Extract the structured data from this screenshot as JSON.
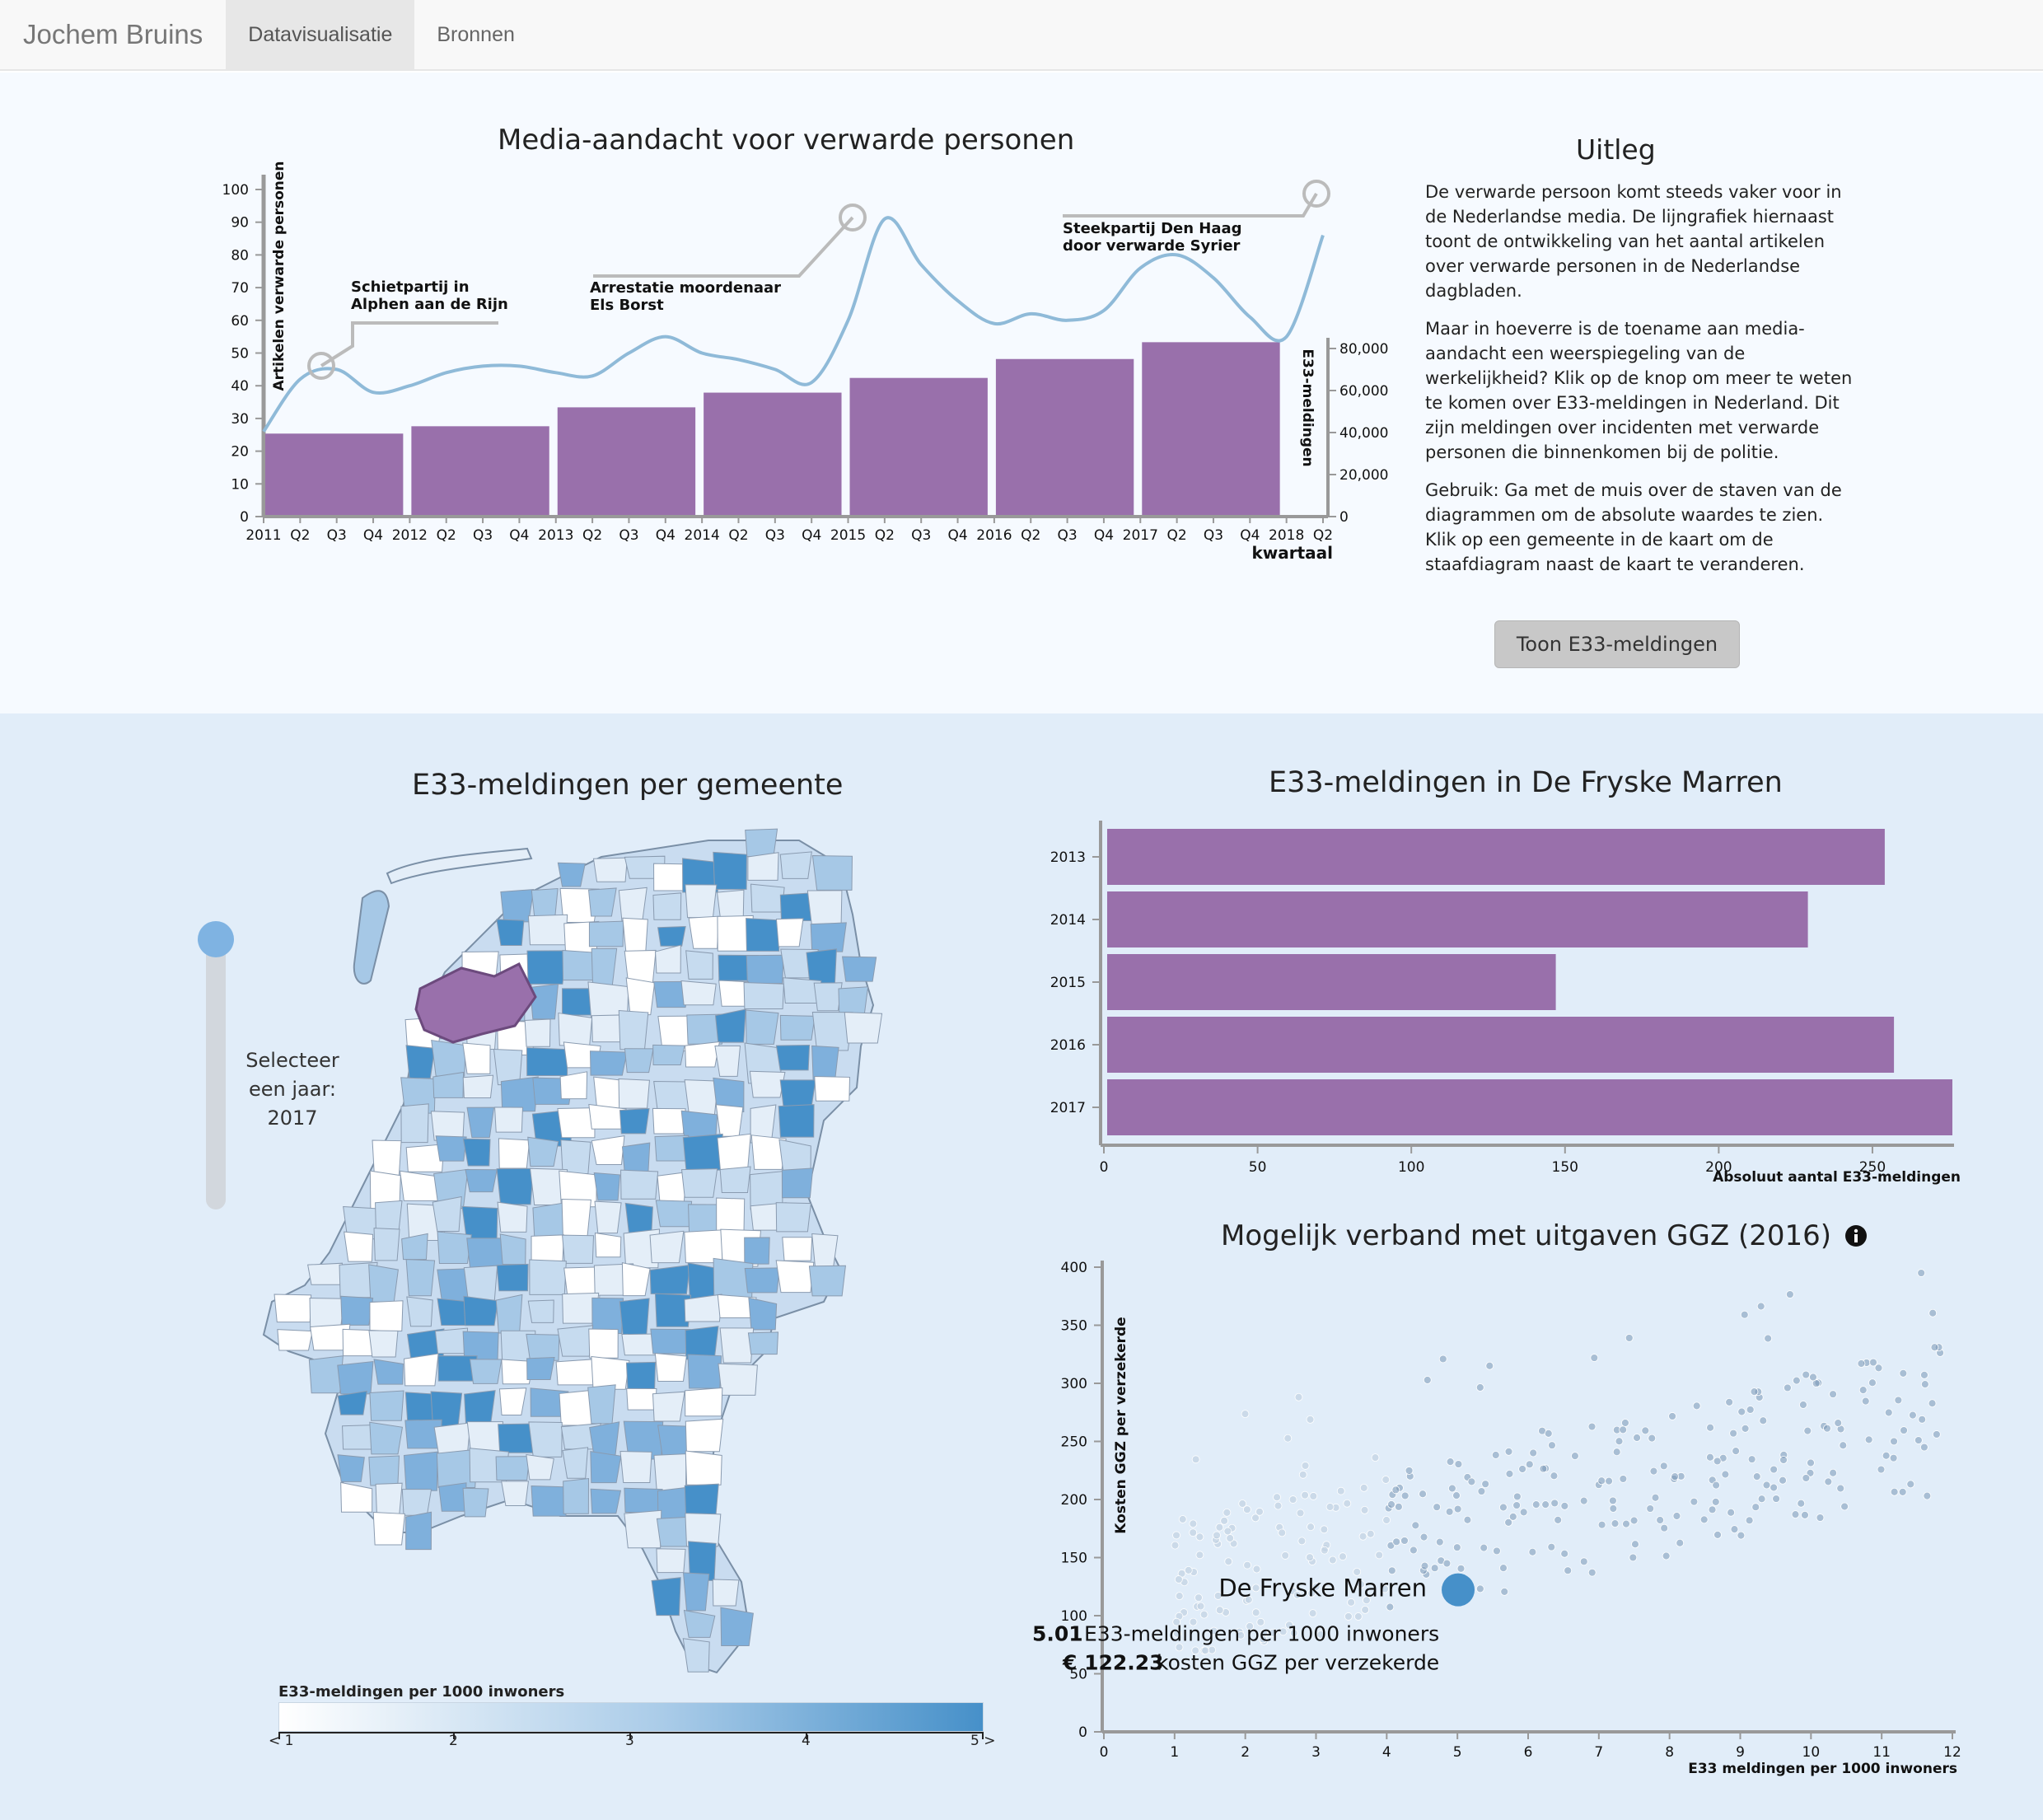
{
  "navbar": {
    "brand": "Jochem Bruins",
    "links": [
      {
        "label": "Datavisualisatie",
        "active": true
      },
      {
        "label": "Bronnen",
        "active": false
      }
    ]
  },
  "media_chart": {
    "title": "Media-aandacht voor verwarde personen",
    "ylabel_left": "Artikelen verwarde personen",
    "ylabel_right": "E33-meldingen",
    "xlabel": "kwartaal",
    "quarter_labels": [
      "2011",
      "Q2",
      "Q3",
      "Q4",
      "2012",
      "Q2",
      "Q3",
      "Q4",
      "2013",
      "Q2",
      "Q3",
      "Q4",
      "2014",
      "Q2",
      "Q3",
      "Q4",
      "2015",
      "Q2",
      "Q3",
      "Q4",
      "2016",
      "Q2",
      "Q3",
      "Q4",
      "2017",
      "Q2",
      "Q3",
      "Q4",
      "2018",
      "Q2"
    ],
    "left_ticks": [
      "0",
      "10",
      "20",
      "30",
      "40",
      "50",
      "60",
      "70",
      "80",
      "90",
      "100"
    ],
    "right_ticks": [
      "0",
      "20,000",
      "40,000",
      "60,000",
      "80,000"
    ],
    "annotations": [
      {
        "line1": "Schietpartij in",
        "line2": "Alphen aan de Rijn"
      },
      {
        "line1": "Arrestatie moordenaar",
        "line2": "Els Borst"
      },
      {
        "line1": "Steekpartij Den Haag",
        "line2": "door verwarde Syrier"
      }
    ]
  },
  "uitleg": {
    "title": "Uitleg",
    "p1": "De verwarde persoon komt steeds vaker voor in de Nederlandse media. De lijngrafiek hiernaast toont de ontwikkeling van het aantal artikelen over verwarde personen in de Nederlandse dagbladen.",
    "p2": "Maar in hoeverre is de toename aan media-aandacht een weerspiegeling van de werkelijkheid? Klik op de knop om meer te weten te komen over E33-meldingen in Nederland. Dit zijn meldingen over incidenten met verwarde personen die binnenkomen bij de politie.",
    "p3": "Gebruik: Ga met de muis over de staven van de diagrammen om de absolute waardes te zien. Klik op een gemeente in de kaart om de staafdiagram naast de kaart te veranderen.",
    "button": "Toon E33-meldingen"
  },
  "map": {
    "title": "E33-meldingen per gemeente",
    "slider_line1": "Selecteer",
    "slider_line2": "een jaar:",
    "slider_year": "2017",
    "legend_title": "E33-meldingen per 1000 inwoners",
    "legend_labels": [
      "< 1",
      "2",
      "3",
      "4",
      "5 >"
    ],
    "colors": {
      "low": "#ffffff",
      "high": "#4690c9",
      "selected": "#9970ab"
    }
  },
  "bar_chart": {
    "title": "E33-meldingen in De Fryske Marren",
    "xlabel": "Absoluut aantal E33-meldingen",
    "x_ticks": [
      "0",
      "50",
      "100",
      "150",
      "200",
      "250"
    ],
    "years": [
      "2013",
      "2014",
      "2015",
      "2016",
      "2017"
    ]
  },
  "scatter": {
    "title": "Mogelijk verband met uitgaven GGZ (2016)",
    "info_icon": "info-icon",
    "ylabel": "Kosten GGZ per verzekerde",
    "xlabel": "E33 meldingen per 1000 inwoners",
    "x_ticks": [
      "0",
      "1",
      "2",
      "3",
      "4",
      "5",
      "6",
      "7",
      "8",
      "9",
      "10",
      "11",
      "12"
    ],
    "y_ticks": [
      "0",
      "50",
      "100",
      "150",
      "200",
      "250",
      "300",
      "350",
      "400"
    ],
    "highlight": {
      "name": "De Fryske Marren",
      "value1": "5.01",
      "text1": "E33-meldingen per 1000 inwoners",
      "value2": "€ 122.23",
      "text2": "kosten GGZ per verzekerde"
    }
  },
  "chart_data": [
    {
      "type": "line",
      "title": "Media-aandacht voor verwarde personen",
      "xlabel": "kwartaal",
      "ylabel": "Artikelen verwarde personen",
      "x": [
        "2011",
        "Q2",
        "Q3",
        "Q4",
        "2012",
        "Q2",
        "Q3",
        "Q4",
        "2013",
        "Q2",
        "Q3",
        "Q4",
        "2014",
        "Q2",
        "Q3",
        "Q4",
        "2015",
        "Q2",
        "Q3",
        "Q4",
        "2016",
        "Q2",
        "Q3",
        "Q4",
        "2017",
        "Q2",
        "Q3",
        "Q4",
        "2018",
        "Q2"
      ],
      "series": [
        {
          "name": "Artikelen verwarde personen",
          "values": [
            26,
            42,
            45,
            38,
            40,
            44,
            46,
            46,
            44,
            43,
            50,
            55,
            50,
            48,
            45,
            41,
            60,
            91,
            77,
            66,
            59,
            62,
            60,
            63,
            76,
            80,
            73,
            61,
            55,
            86
          ]
        }
      ],
      "ylim": [
        0,
        100
      ]
    },
    {
      "type": "bar",
      "title": "Media-aandacht voor verwarde personen",
      "ylabel": "E33-meldingen",
      "categories": [
        "2011",
        "2012",
        "2013",
        "2014",
        "2015",
        "2016",
        "2017",
        "2018"
      ],
      "values": [
        39500,
        43000,
        52000,
        59000,
        66000,
        75000,
        83000,
        0
      ],
      "ylim": [
        0,
        85000
      ]
    },
    {
      "type": "bar",
      "title": "E33-meldingen in De Fryske Marren",
      "xlabel": "Absoluut aantal E33-meldingen",
      "categories": [
        "2013",
        "2014",
        "2015",
        "2016",
        "2017"
      ],
      "values": [
        254,
        229,
        147,
        257,
        276
      ],
      "xlim": [
        0,
        276
      ]
    },
    {
      "type": "scatter",
      "title": "Mogelijk verband met uitgaven GGZ (2016)",
      "xlabel": "E33 meldingen per 1000 inwoners",
      "ylabel": "Kosten GGZ per verzekerde",
      "xlim": [
        0,
        12
      ],
      "ylim": [
        0,
        400
      ],
      "highlight": {
        "x": 5.01,
        "y": 122.23
      }
    }
  ]
}
